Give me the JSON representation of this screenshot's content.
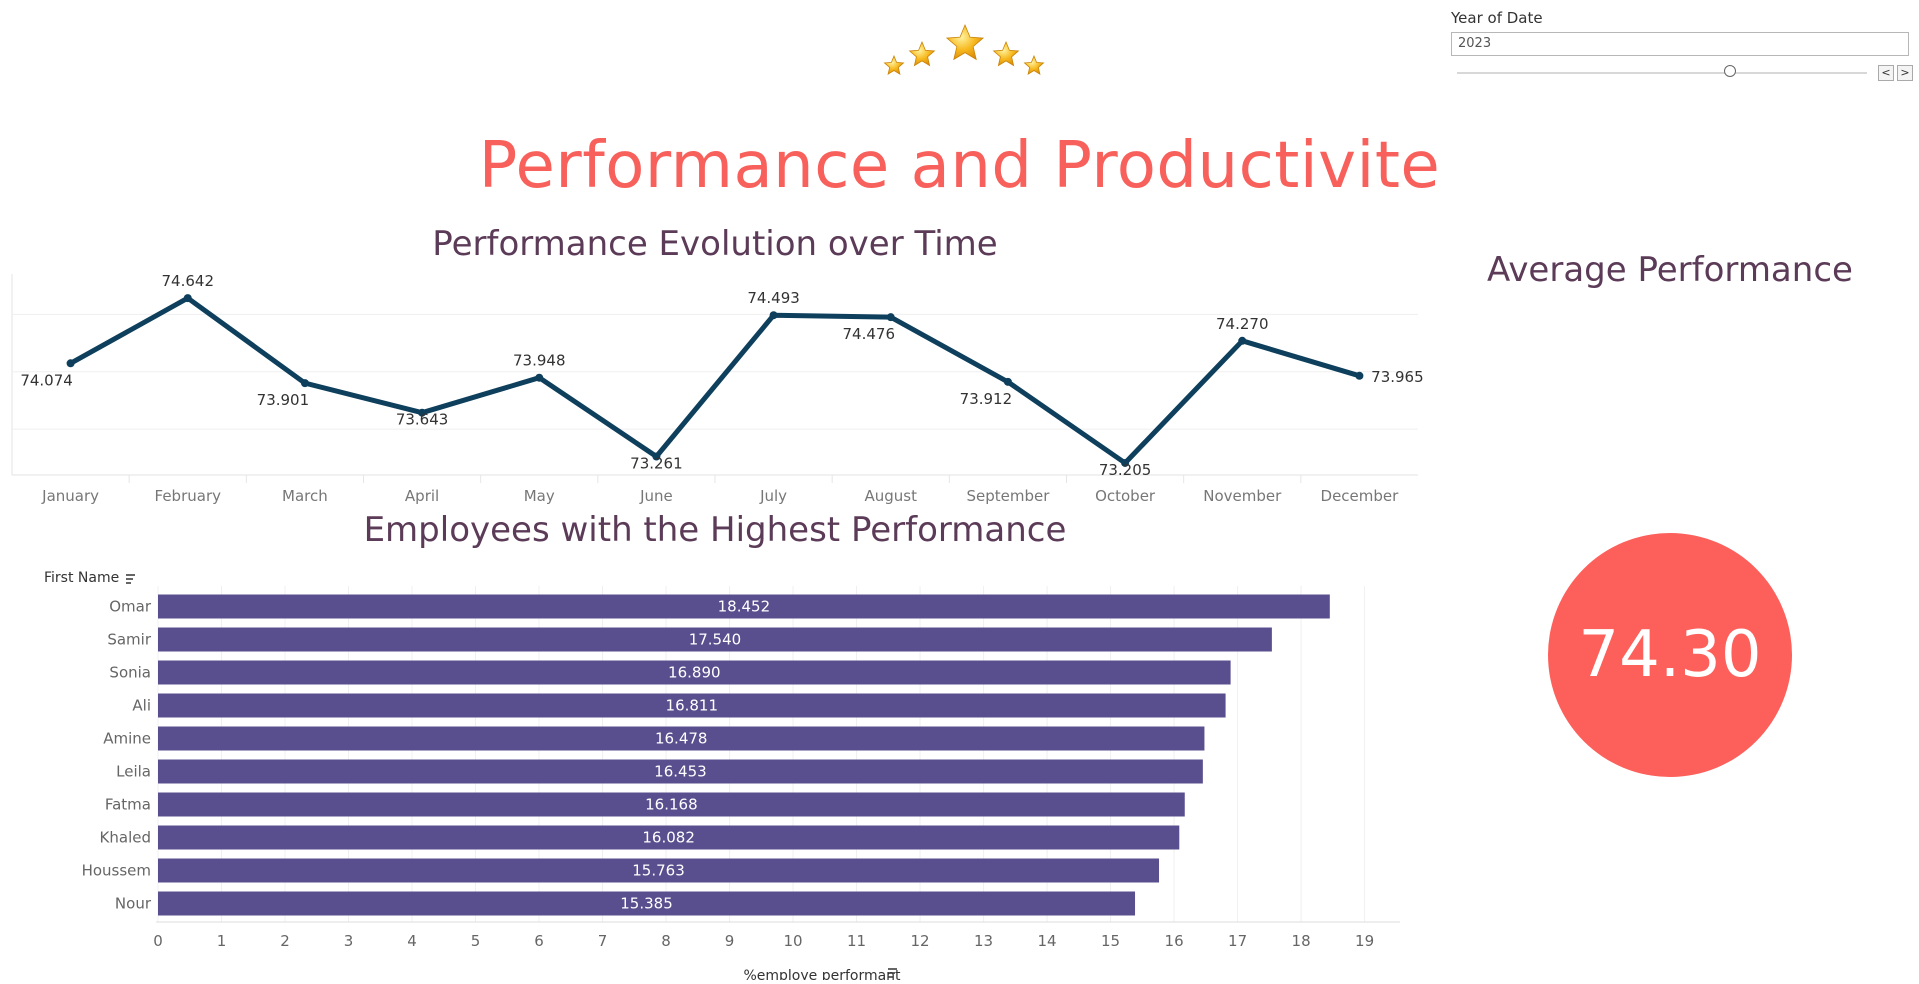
{
  "header": {
    "title": "Performance and Productivite"
  },
  "filter": {
    "label": "Year of Date",
    "value": "2023",
    "prev_glyph": "<",
    "next_glyph": ">"
  },
  "kpi": {
    "title": "Average Performance",
    "value": "74.30"
  },
  "colors": {
    "title": "#f8605c",
    "subtitle": "#5b3b57",
    "line": "#0e3f5c",
    "bar": "#5a4f8e",
    "kpi": "#fd605b"
  },
  "chart_data": [
    {
      "type": "line",
      "title": "Performance Evolution over Time",
      "categories": [
        "January",
        "February",
        "March",
        "April",
        "May",
        "June",
        "July",
        "August",
        "September",
        "October",
        "November",
        "December"
      ],
      "values": [
        74.074,
        74.642,
        73.901,
        73.643,
        73.948,
        73.261,
        74.493,
        74.476,
        73.912,
        73.205,
        74.27,
        73.965
      ],
      "labels": [
        "74.074",
        "74.642",
        "73.901",
        "73.643",
        "73.948",
        "73.261",
        "74.493",
        "74.476",
        "73.912",
        "73.205",
        "74.270",
        "73.965"
      ],
      "ylim": [
        73.1,
        74.8
      ],
      "grid": true
    },
    {
      "type": "bar",
      "title": "Employees with the Highest Performance",
      "ylabel": "First Name",
      "xlabel": "%employe performant",
      "categories": [
        "Omar",
        "Samir",
        "Sonia",
        "Ali",
        "Amine",
        "Leila",
        "Fatma",
        "Khaled",
        "Houssem",
        "Nour"
      ],
      "values": [
        18.452,
        17.54,
        16.89,
        16.811,
        16.478,
        16.453,
        16.168,
        16.082,
        15.763,
        15.385
      ],
      "labels": [
        "18.452",
        "17.540",
        "16.890",
        "16.811",
        "16.478",
        "16.453",
        "16.168",
        "16.082",
        "15.763",
        "15.385"
      ],
      "xticks": [
        "0",
        "1",
        "2",
        "3",
        "4",
        "5",
        "6",
        "7",
        "8",
        "9",
        "10",
        "11",
        "12",
        "13",
        "14",
        "15",
        "16",
        "17",
        "18",
        "19"
      ],
      "xlim": [
        0,
        19.4
      ],
      "grid": true
    }
  ]
}
